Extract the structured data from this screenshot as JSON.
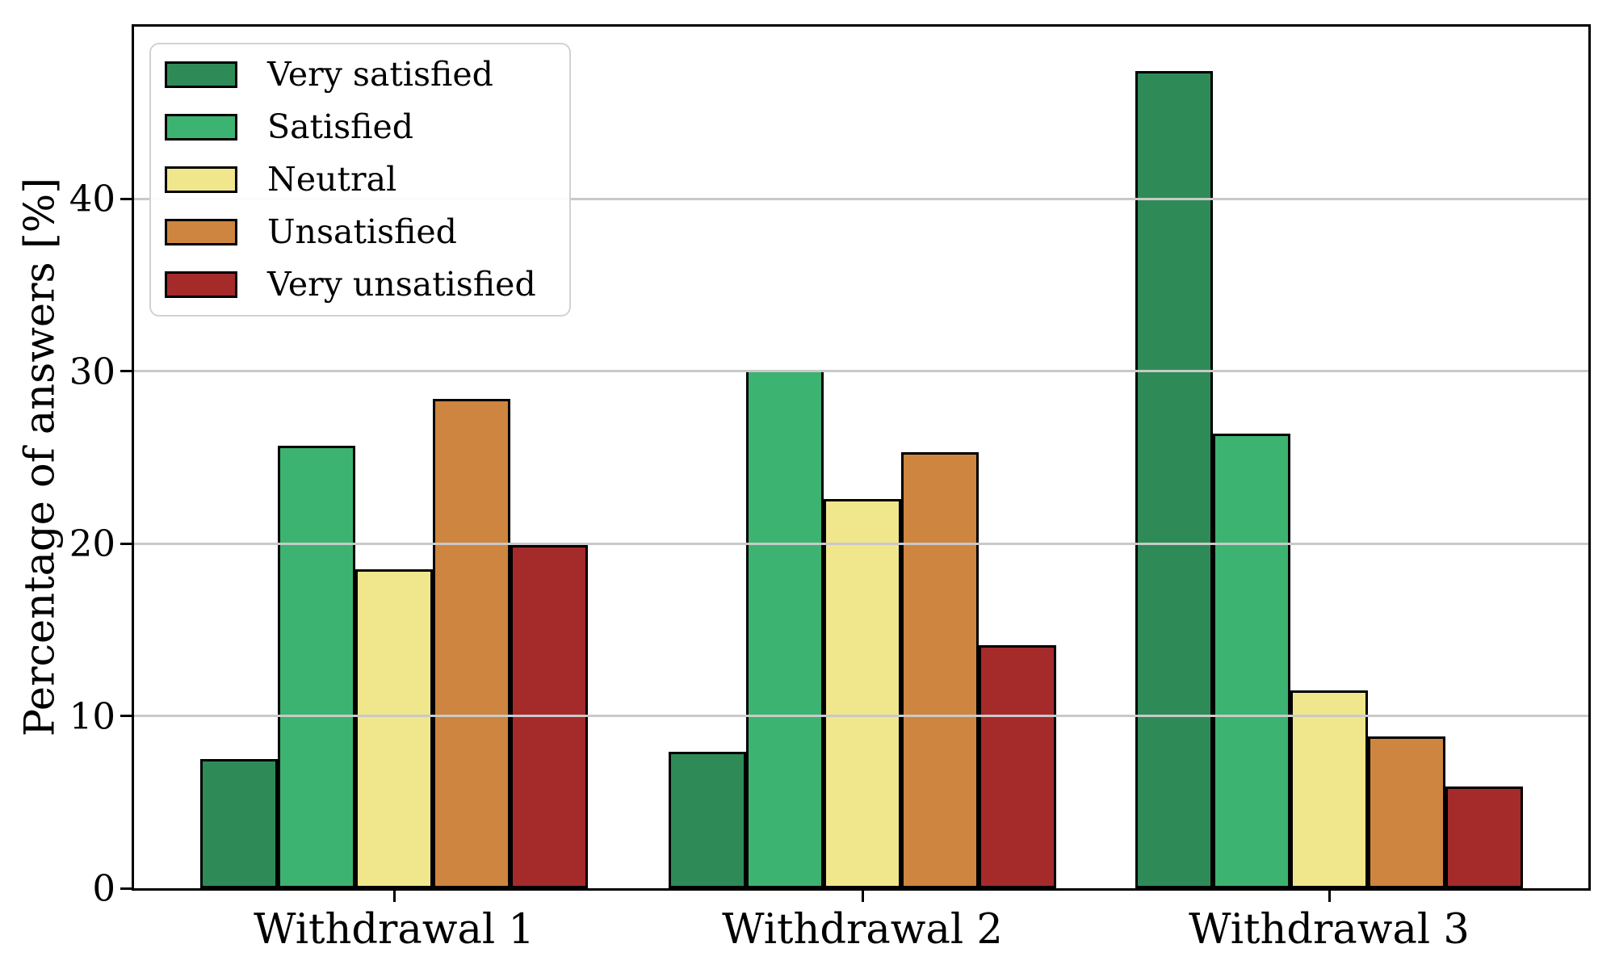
{
  "chart_data": {
    "type": "bar",
    "title": "",
    "categories": [
      "Withdrawal 1",
      "Withdrawal 2",
      "Withdrawal 3"
    ],
    "series": [
      {
        "name": "Very satisfied",
        "color": "#2e8b57",
        "values": [
          7.5,
          7.9,
          47.4
        ]
      },
      {
        "name": "Satisfied",
        "color": "#3cb371",
        "values": [
          25.7,
          30.1,
          26.4
        ]
      },
      {
        "name": "Neutral",
        "color": "#f0e68c",
        "values": [
          18.5,
          22.6,
          11.5
        ]
      },
      {
        "name": "Unsatisfied",
        "color": "#cd853f",
        "values": [
          28.4,
          25.3,
          8.8
        ]
      },
      {
        "name": "Very unsatisfied",
        "color": "#a52a2a",
        "values": [
          19.9,
          14.1,
          5.9
        ]
      }
    ],
    "xlabel": "",
    "ylabel": "Percentage of answers [%]",
    "ylim": [
      0,
      50
    ],
    "yticks": [
      0,
      10,
      20,
      30,
      40
    ],
    "grid": true,
    "grid_color": "#c9c9c9",
    "bar_edge_color": "#000000",
    "legend_position": "upper left"
  }
}
